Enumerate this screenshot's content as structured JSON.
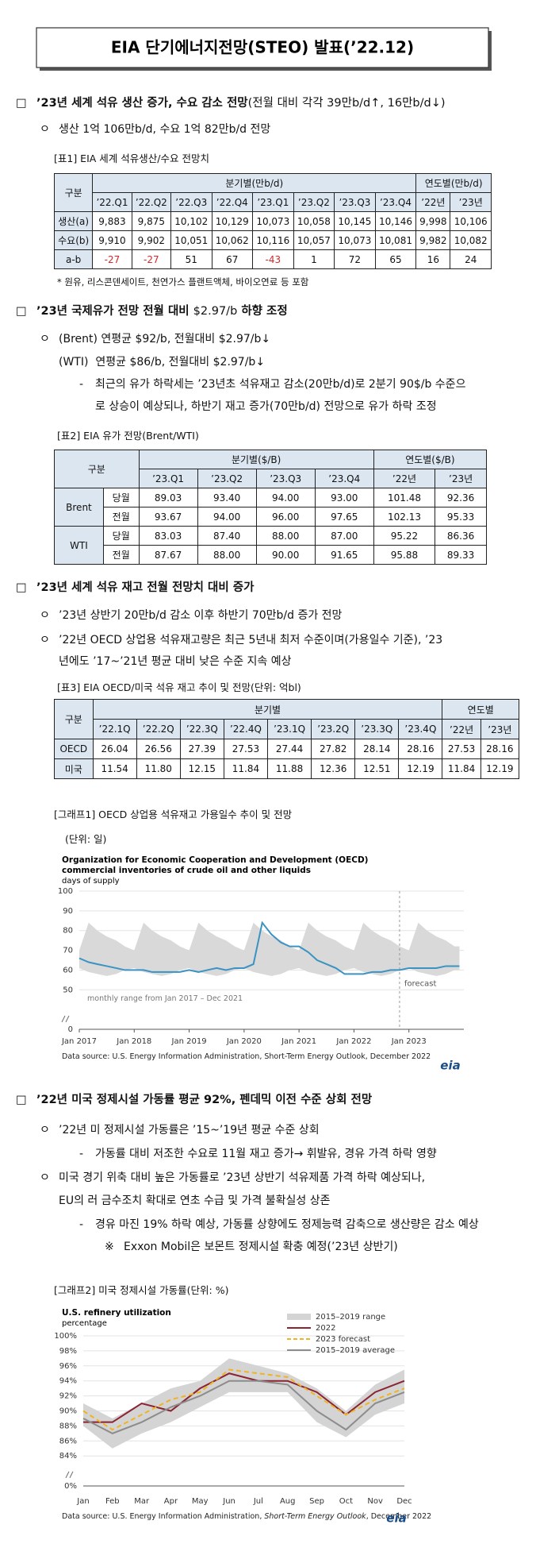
{
  "title": "EIA 단기에너지전망(STEO) 발표(’22.12)",
  "sections": [
    {
      "marker": "□",
      "heading": [
        "’23년 세계 석유 생산 증가, 수요 감소 전망",
        "(전월 대비 각각 39만b/d↑, 16만b/d↓)"
      ],
      "lines": [
        {
          "marker": "ㅇ",
          "text": "생산 1억 106만b/d, 수요 1억 82만b/d 전망"
        }
      ]
    },
    {
      "marker": "□",
      "heading": [
        "’23년 국제유가 전망 전월 대비 ",
        "$2.97/b",
        " 하향 조정"
      ],
      "lines": [
        {
          "marker": "ㅇ",
          "text": "(Brent) 연평균 $92/b, 전월대비 $2.97/b↓"
        },
        {
          "text": "(WTI)  연평균 $86/b, 전월대비 $2.97/b↓"
        },
        {
          "marker": "-",
          "text": "최근의 유가 하락세는 ’23년초 석유재고 감소(20만b/d)로 2분기 90$/b 수준으"
        },
        {
          "text": "로 상승이 예상되나, 하반기 재고 증가(70만b/d) 전망으로 유가 하락 조정"
        }
      ]
    },
    {
      "marker": "□",
      "heading": [
        "’23년 세계 석유 재고 전월 전망치 대비 증가"
      ],
      "lines": [
        {
          "marker": "ㅇ",
          "text": "’23년 상반기 20만b/d 감소 이후 하반기 70만b/d 증가 전망"
        },
        {
          "marker": "ㅇ",
          "text": "’22년 OECD 상업용 석유재고량은 최근 5년내 최저 수준이며(가용일수 기준), ’23"
        },
        {
          "text": "년에도 ’17~’21년 평균 대비 낮은 수준 지속 예상"
        }
      ]
    },
    {
      "marker": "□",
      "heading": [
        "’22년 미국 정제시설 가동률 평균 92%, 펜데믹 이전 수준 상회 전망"
      ],
      "lines": [
        {
          "marker": "ㅇ",
          "text": "’22년 미 정제시설 가동률은 ’15~’19년 평균 수준 상회"
        },
        {
          "marker": "-",
          "text": "가동률 대비 저조한 수요로 11월 재고 증가→ 휘발유, 경유 가격 하락 영향"
        },
        {
          "marker": "ㅇ",
          "text": "미국 경기 위축 대비 높은 가동률로 ’23년 상반기 석유제품 가격 하락 예상되나,"
        },
        {
          "text": "EU의 러 금수조치 확대로 연초 수급 및 가격 불확실성 상존"
        },
        {
          "marker": "-",
          "text": "경유 마진 19% 하락 예상, 가동률 상향에도 정제능력 감축으로 생산량은 감소 예상"
        },
        {
          "marker": "※",
          "text": "Exxon Mobil은 보몬트 정제시설 확충 예정(’23년 상반기)"
        }
      ]
    }
  ],
  "tables": [
    {
      "caption": "[표1] EIA 세계 석유생산/수요 전망치",
      "corner": "구분",
      "column_groups": [
        {
          "label": "분기별(만b/d)",
          "columns": [
            "’22.Q1",
            "’22.Q2",
            "’22.Q3",
            "’22.Q4",
            "’23.Q1",
            "’23.Q2",
            "’23.Q3",
            "’23.Q4"
          ]
        },
        {
          "label": "연도별(만b/d)",
          "columns": [
            "’22년",
            "’23년"
          ]
        }
      ],
      "rows": [
        {
          "label": "생산(a)",
          "cells": [
            "9,883",
            "9,875",
            "10,102",
            "10,129",
            "10,073",
            "10,058",
            "10,145",
            "10,146",
            "9,998",
            "10,106"
          ]
        },
        {
          "label": "수요(b)",
          "cells": [
            "9,910",
            "9,902",
            "10,051",
            "10,062",
            "10,116",
            "10,057",
            "10,073",
            "10,081",
            "9,982",
            "10,082"
          ]
        },
        {
          "label": "a-b",
          "cells": [
            "-27",
            "-27",
            "51",
            "67",
            "-43",
            "1",
            "72",
            "65",
            "16",
            "24"
          ]
        }
      ],
      "note": "* 원유, 리스콘덴세이트, 천연가스 플랜트액체, 바이오연료 등 포함"
    },
    {
      "caption": "[표2] EIA 유가 전망(Brent/WTI)",
      "corner": "구분",
      "column_groups": [
        {
          "label": "분기별($/B)",
          "columns": [
            "’23.Q1",
            "’23.Q2",
            "’23.Q3",
            "’23.Q4"
          ]
        },
        {
          "label": "연도별($/B)",
          "columns": [
            "’22년",
            "’23년"
          ]
        }
      ],
      "row_groups": [
        {
          "label": "Brent",
          "rows": [
            {
              "label": "당월",
              "cells": [
                "89.03",
                "93.40",
                "94.00",
                "93.00",
                "101.48",
                "92.36"
              ]
            },
            {
              "label": "전월",
              "cells": [
                "93.67",
                "94.00",
                "96.00",
                "97.65",
                "102.13",
                "95.33"
              ]
            }
          ]
        },
        {
          "label": "WTI",
          "rows": [
            {
              "label": "당월",
              "cells": [
                "83.03",
                "87.40",
                "88.00",
                "87.00",
                "95.22",
                "86.36"
              ]
            },
            {
              "label": "전월",
              "cells": [
                "87.67",
                "88.00",
                "90.00",
                "91.65",
                "95.88",
                "89.33"
              ]
            }
          ]
        }
      ]
    },
    {
      "caption": "[표3] EIA OECD/미국 석유 재고 추이 및 전망(단위: 억bl)",
      "corner": "구분",
      "column_groups": [
        {
          "label": "분기별",
          "columns": [
            "’22.1Q",
            "’22.2Q",
            "’22.3Q",
            "’22.4Q",
            "’23.1Q",
            "’23.2Q",
            "’23.3Q",
            "’23.4Q"
          ]
        },
        {
          "label": "연도별",
          "columns": [
            "’22년",
            "’23년"
          ]
        }
      ],
      "rows": [
        {
          "label": "OECD",
          "cells": [
            "26.04",
            "26.56",
            "27.39",
            "27.53",
            "27.44",
            "27.82",
            "28.14",
            "28.16",
            "27.53",
            "28.16"
          ]
        },
        {
          "label": "미국",
          "cells": [
            "11.54",
            "11.80",
            "12.15",
            "11.84",
            "11.88",
            "12.36",
            "12.51",
            "12.19",
            "11.84",
            "12.19"
          ]
        }
      ]
    }
  ],
  "chart_data": [
    {
      "type": "line",
      "caption": "[그래프1] OECD 상업용 석유재고 가용일수 추이 및 전망",
      "unit": "(단위: 일)",
      "title": [
        "Organization for Economic Cooperation and Development (OECD)",
        "commercial inventories of crude oil and other liquids"
      ],
      "y_label": "days of supply",
      "x": [
        2017,
        2017.17,
        2017.33,
        2017.5,
        2017.67,
        2017.83,
        2018,
        2018.17,
        2018.33,
        2018.5,
        2018.67,
        2018.83,
        2019,
        2019.17,
        2019.33,
        2019.5,
        2019.67,
        2019.83,
        2020,
        2020.17,
        2020.33,
        2020.5,
        2020.67,
        2020.83,
        2021,
        2021.17,
        2021.33,
        2021.5,
        2021.67,
        2021.83,
        2022,
        2022.17,
        2022.33,
        2022.5,
        2022.67,
        2022.83,
        2023,
        2023.17,
        2023.33,
        2023.5,
        2023.67,
        2023.83,
        2023.92
      ],
      "series": [
        {
          "color": "#3a93c3",
          "values": [
            66,
            64,
            63,
            62,
            61,
            60,
            60,
            60,
            59,
            59,
            59,
            59,
            60,
            59,
            60,
            61,
            60,
            61,
            61,
            63,
            84,
            78,
            74,
            72,
            72,
            69,
            65,
            63,
            61,
            58,
            58,
            58,
            59,
            59,
            60,
            60,
            61,
            61,
            61,
            61,
            62,
            62,
            62
          ]
        }
      ],
      "range": {
        "color": "#d9d9d9",
        "annotation": "monthly range from Jan 2017 – Dec 2021",
        "upper": [
          70,
          84,
          80,
          77,
          75,
          72,
          70,
          84,
          80,
          77,
          75,
          72,
          70,
          84,
          80,
          77,
          75,
          72,
          70,
          84,
          80,
          77,
          75,
          72,
          70,
          84,
          80,
          77,
          75,
          72,
          70,
          84,
          80,
          77,
          75,
          72,
          70,
          84,
          80,
          77,
          75,
          72,
          72
        ],
        "lower": [
          61,
          59,
          58,
          57,
          58,
          60,
          61,
          59,
          58,
          57,
          58,
          60,
          61,
          59,
          58,
          57,
          58,
          60,
          61,
          59,
          58,
          57,
          58,
          60,
          61,
          59,
          58,
          57,
          58,
          60,
          61,
          59,
          58,
          57,
          58,
          60,
          61,
          59,
          58,
          57,
          58,
          60,
          60
        ]
      },
      "forecast": {
        "x": 2022.83,
        "label": "forecast"
      },
      "xlim": [
        2017,
        2024
      ],
      "xticks": [
        {
          "value": 2017,
          "label": "Jan 2017"
        },
        {
          "value": 2018,
          "label": "Jan 2018"
        },
        {
          "value": 2019,
          "label": "Jan 2019"
        },
        {
          "value": 2020,
          "label": "Jan 2020"
        },
        {
          "value": 2021,
          "label": "Jan 2021"
        },
        {
          "value": 2022,
          "label": "Jan 2022"
        },
        {
          "value": 2023,
          "label": "Jan 2023"
        }
      ],
      "ylim": [
        30,
        100
      ],
      "yticks": [
        0,
        50,
        60,
        70,
        80,
        90,
        100
      ],
      "axis_break": true,
      "grid": true,
      "source": [
        "Data source: U.S. Energy Information Administration, Short-Term Energy Outlook, December 2022"
      ],
      "logo": "eia"
    },
    {
      "type": "line",
      "caption": "[그래프2] 미국 정제시설 가동률(단위: %)",
      "title": [
        "U.S. refinery utilization"
      ],
      "y_label": "percentage",
      "categories": [
        "Jan",
        "Feb",
        "Mar",
        "Apr",
        "May",
        "Jun",
        "Jul",
        "Aug",
        "Sep",
        "Oct",
        "Nov",
        "Dec"
      ],
      "range": {
        "name": "2015–2019 range",
        "color": "#d4d4d4",
        "upper": [
          91,
          89,
          91,
          93,
          94,
          97,
          96,
          95,
          93,
          90,
          93.5,
          95.5
        ],
        "lower": [
          88,
          85,
          87,
          88.5,
          90.5,
          92.5,
          92.5,
          92.5,
          88.5,
          86.5,
          89.5,
          91
        ]
      },
      "series": [
        {
          "name": "2022",
          "color": "#8b2331",
          "values": [
            88.5,
            88.5,
            91,
            90,
            93,
            95,
            94,
            94,
            92.5,
            89.5,
            92.5,
            94
          ]
        },
        {
          "name": "2023 forecast",
          "color": "#f0b323",
          "dash": true,
          "values": [
            90,
            87.5,
            89.5,
            91.5,
            92.5,
            95.5,
            95,
            94.5,
            92,
            89.5,
            91.5,
            93
          ]
        },
        {
          "name": "2015–2019 average",
          "color": "#8c8c8c",
          "values": [
            89,
            87,
            88.5,
            90.5,
            92,
            94,
            94,
            93.5,
            90,
            87.5,
            91,
            92.5
          ]
        }
      ],
      "ylim": [
        80,
        100
      ],
      "yticks": [
        {
          "value": 0,
          "label": "0%"
        },
        {
          "value": 84,
          "label": "84%"
        },
        {
          "value": 86,
          "label": "86%"
        },
        {
          "value": 88,
          "label": "88%"
        },
        {
          "value": 90,
          "label": "90%"
        },
        {
          "value": 92,
          "label": "92%"
        },
        {
          "value": 94,
          "label": "94%"
        },
        {
          "value": 96,
          "label": "96%"
        },
        {
          "value": 98,
          "label": "98%"
        },
        {
          "value": 100,
          "label": "100%"
        }
      ],
      "axis_break": true,
      "grid": true,
      "legend": "upper right",
      "source": [
        "Data source: U.S. Energy Information Administration, ",
        "Short-Term Energy Outlook",
        ", December 2022"
      ],
      "logo": "eia"
    }
  ]
}
